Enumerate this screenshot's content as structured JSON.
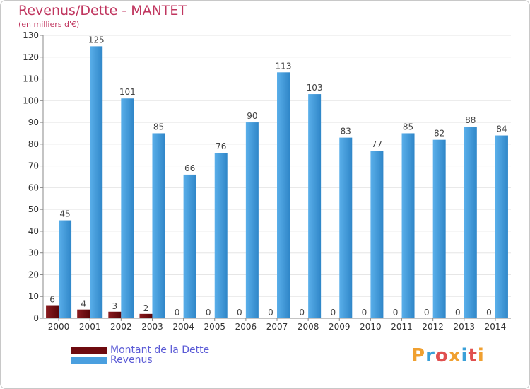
{
  "title": "Revenus/Dette - MANTET",
  "subtitle": "(en milliers d'€)",
  "colors": {
    "dette": "#6e0a0f",
    "revenus": "#4a9fdf",
    "title": "#c0365f",
    "legend": "#5b5bd6"
  },
  "chart_data": {
    "type": "bar",
    "title": "Revenus/Dette - MANTET",
    "ylabel": "(en milliers d'€)",
    "xlabel": "",
    "ylim": [
      0,
      130
    ],
    "yticks": [
      0,
      10,
      20,
      30,
      40,
      50,
      60,
      70,
      80,
      90,
      100,
      110,
      120,
      130
    ],
    "categories": [
      "2000",
      "2001",
      "2002",
      "2003",
      "2004",
      "2005",
      "2006",
      "2007",
      "2008",
      "2009",
      "2010",
      "2011",
      "2012",
      "2013",
      "2014"
    ],
    "series": [
      {
        "name": "Montant de la Dette",
        "color": "#6e0a0f",
        "values": [
          6,
          4,
          3,
          2,
          0,
          0,
          0,
          0,
          0,
          0,
          0,
          0,
          0,
          0,
          0
        ]
      },
      {
        "name": "Revenus",
        "color": "#4a9fdf",
        "values": [
          45,
          125,
          101,
          85,
          66,
          76,
          90,
          113,
          103,
          83,
          77,
          85,
          82,
          88,
          84
        ]
      }
    ],
    "legend": "bottom-left"
  },
  "legend": {
    "dette_label": "Montant de la Dette",
    "revenus_label": "Revenus"
  },
  "logo": {
    "text": "Proxiti",
    "letters": [
      "P",
      "r",
      "o",
      "x",
      "i",
      "t",
      "i"
    ],
    "colors": [
      "#f0a030",
      "#3aa0d8",
      "#e05050",
      "#f0a030",
      "#3aa0d8",
      "#e05050",
      "#f0a030"
    ]
  }
}
